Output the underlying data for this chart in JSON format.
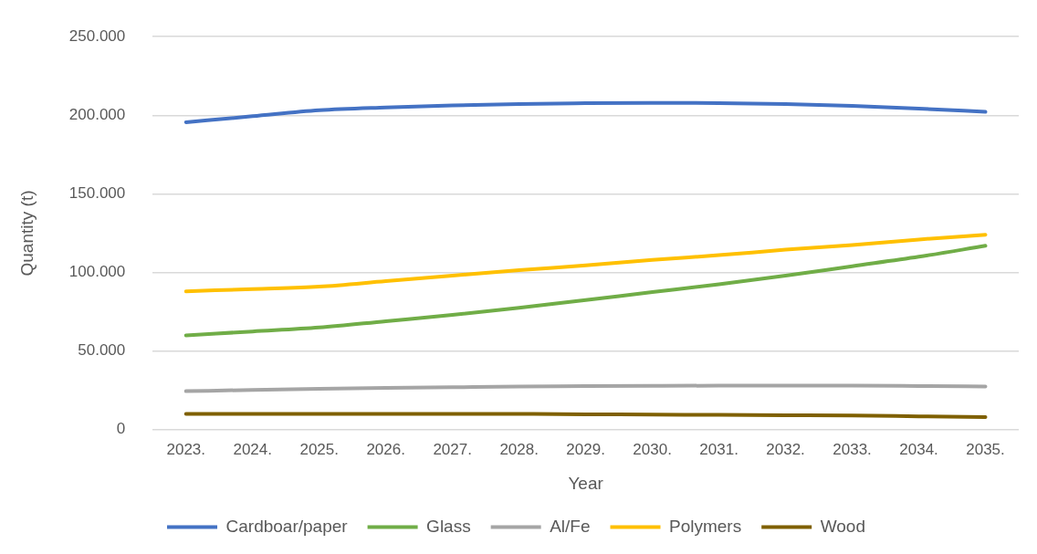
{
  "chart_data": {
    "type": "line",
    "xlabel": "Year",
    "ylabel": "Quantity (t)",
    "categories": [
      "2023.",
      "2024.",
      "2025.",
      "2026.",
      "2027.",
      "2028.",
      "2029.",
      "2030.",
      "2031.",
      "2032.",
      "2033.",
      "2034.",
      "2035."
    ],
    "series": [
      {
        "name": "Cardboar/paper",
        "color": "#4472c4",
        "values": [
          195600,
          199400,
          203200,
          205000,
          206300,
          207200,
          207700,
          207900,
          207800,
          207200,
          206000,
          204300,
          202200
        ]
      },
      {
        "name": "Glass",
        "color": "#70ad47",
        "values": [
          60000,
          62500,
          65000,
          69000,
          73000,
          77500,
          82500,
          87500,
          92500,
          98000,
          104000,
          110000,
          117000
        ]
      },
      {
        "name": "Al/Fe",
        "color": "#a5a5a5",
        "values": [
          24500,
          25300,
          26000,
          26600,
          27000,
          27400,
          27700,
          27900,
          28000,
          28000,
          28000,
          27800,
          27500
        ]
      },
      {
        "name": "Polymers",
        "color": "#ffc000",
        "values": [
          88000,
          89500,
          91000,
          94500,
          98000,
          101500,
          104500,
          108000,
          111000,
          114500,
          117500,
          121000,
          124000
        ]
      },
      {
        "name": "Wood",
        "color": "#7f6000",
        "values": [
          10000,
          10000,
          10000,
          10000,
          10000,
          10000,
          9800,
          9600,
          9400,
          9200,
          9000,
          8500,
          8000
        ]
      }
    ],
    "ylim": [
      0,
      250000
    ],
    "yticks": [
      {
        "value": 0,
        "label": "0"
      },
      {
        "value": 50000,
        "label": "50.000"
      },
      {
        "value": 100000,
        "label": "100.000"
      },
      {
        "value": 150000,
        "label": "150.000"
      },
      {
        "value": 200000,
        "label": "200.000"
      },
      {
        "value": 250000,
        "label": "250.000"
      }
    ],
    "grid": "y",
    "legend": "bottom",
    "marker": "none",
    "line_style": "solid"
  }
}
